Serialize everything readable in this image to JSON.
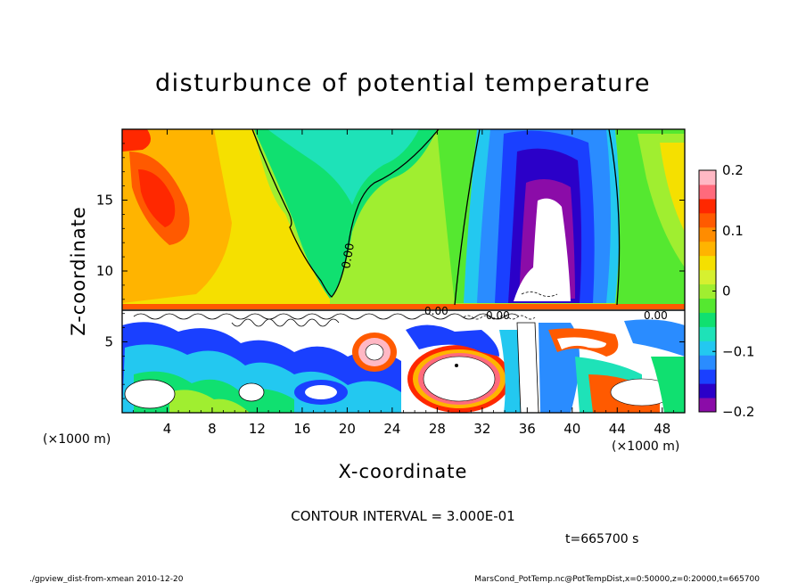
{
  "chart_data": {
    "type": "heatmap",
    "title": "disturbunce of potential temperature",
    "xlabel": "X-coordinate",
    "ylabel": "Z-coordinate",
    "x_unit": "(×1000 m)",
    "y_unit": "(×1000 m)",
    "xlim": [
      0,
      50
    ],
    "ylim": [
      0,
      20
    ],
    "x_ticks": [
      4,
      8,
      12,
      16,
      20,
      24,
      28,
      32,
      36,
      40,
      44,
      48
    ],
    "y_ticks": [
      5,
      10,
      15
    ],
    "colorbar": {
      "min": -0.2,
      "max": 0.2,
      "ticks": [
        0.2,
        0.1,
        0,
        -0.1,
        -0.2
      ],
      "tick_labels": [
        "0.2",
        "0.1",
        "0",
        "−0.1",
        "−0.2"
      ],
      "colors": [
        "#8b0ca8",
        "#2b00c8",
        "#1a40ff",
        "#2a8cff",
        "#23c8f0",
        "#1ee2b8",
        "#10e070",
        "#55e830",
        "#a0ee30",
        "#d6f030",
        "#f5e000",
        "#ffb400",
        "#ff8c00",
        "#ff5a00",
        "#ff2800",
        "#ff6a7c",
        "#ffb8c4"
      ]
    },
    "contour_interval_text": "CONTOUR INTERVAL = 3.000E-01",
    "contour_labels": [
      "0.00",
      "0.00",
      "0.00",
      "0.00",
      "0.00"
    ],
    "time_text": "t=665700 s",
    "upper_layer": {
      "z_range": [
        7.5,
        20
      ],
      "features": [
        {
          "name": "warm anomaly",
          "x_center": 3.5,
          "z_center": 15.5,
          "value": 0.15
        },
        {
          "name": "neutral tongue",
          "x_center": 19,
          "z_center": 12,
          "value": 0.0
        },
        {
          "name": "cold column",
          "x_center": 37,
          "z_center": 15,
          "value": -0.2
        },
        {
          "name": "white core",
          "x_center": 38,
          "z_center": 11,
          "value": -0.25
        }
      ]
    },
    "lower_layer": {
      "z_range": [
        0,
        7.5
      ],
      "description": "turbulent mixed layer with values beyond color range"
    }
  },
  "footer": {
    "left": "./gpview_dist-from-xmean  2010-12-20",
    "right": "MarsCond_PotTemp.nc@PotTempDist,x=0:50000,z=0:20000,t=665700"
  }
}
